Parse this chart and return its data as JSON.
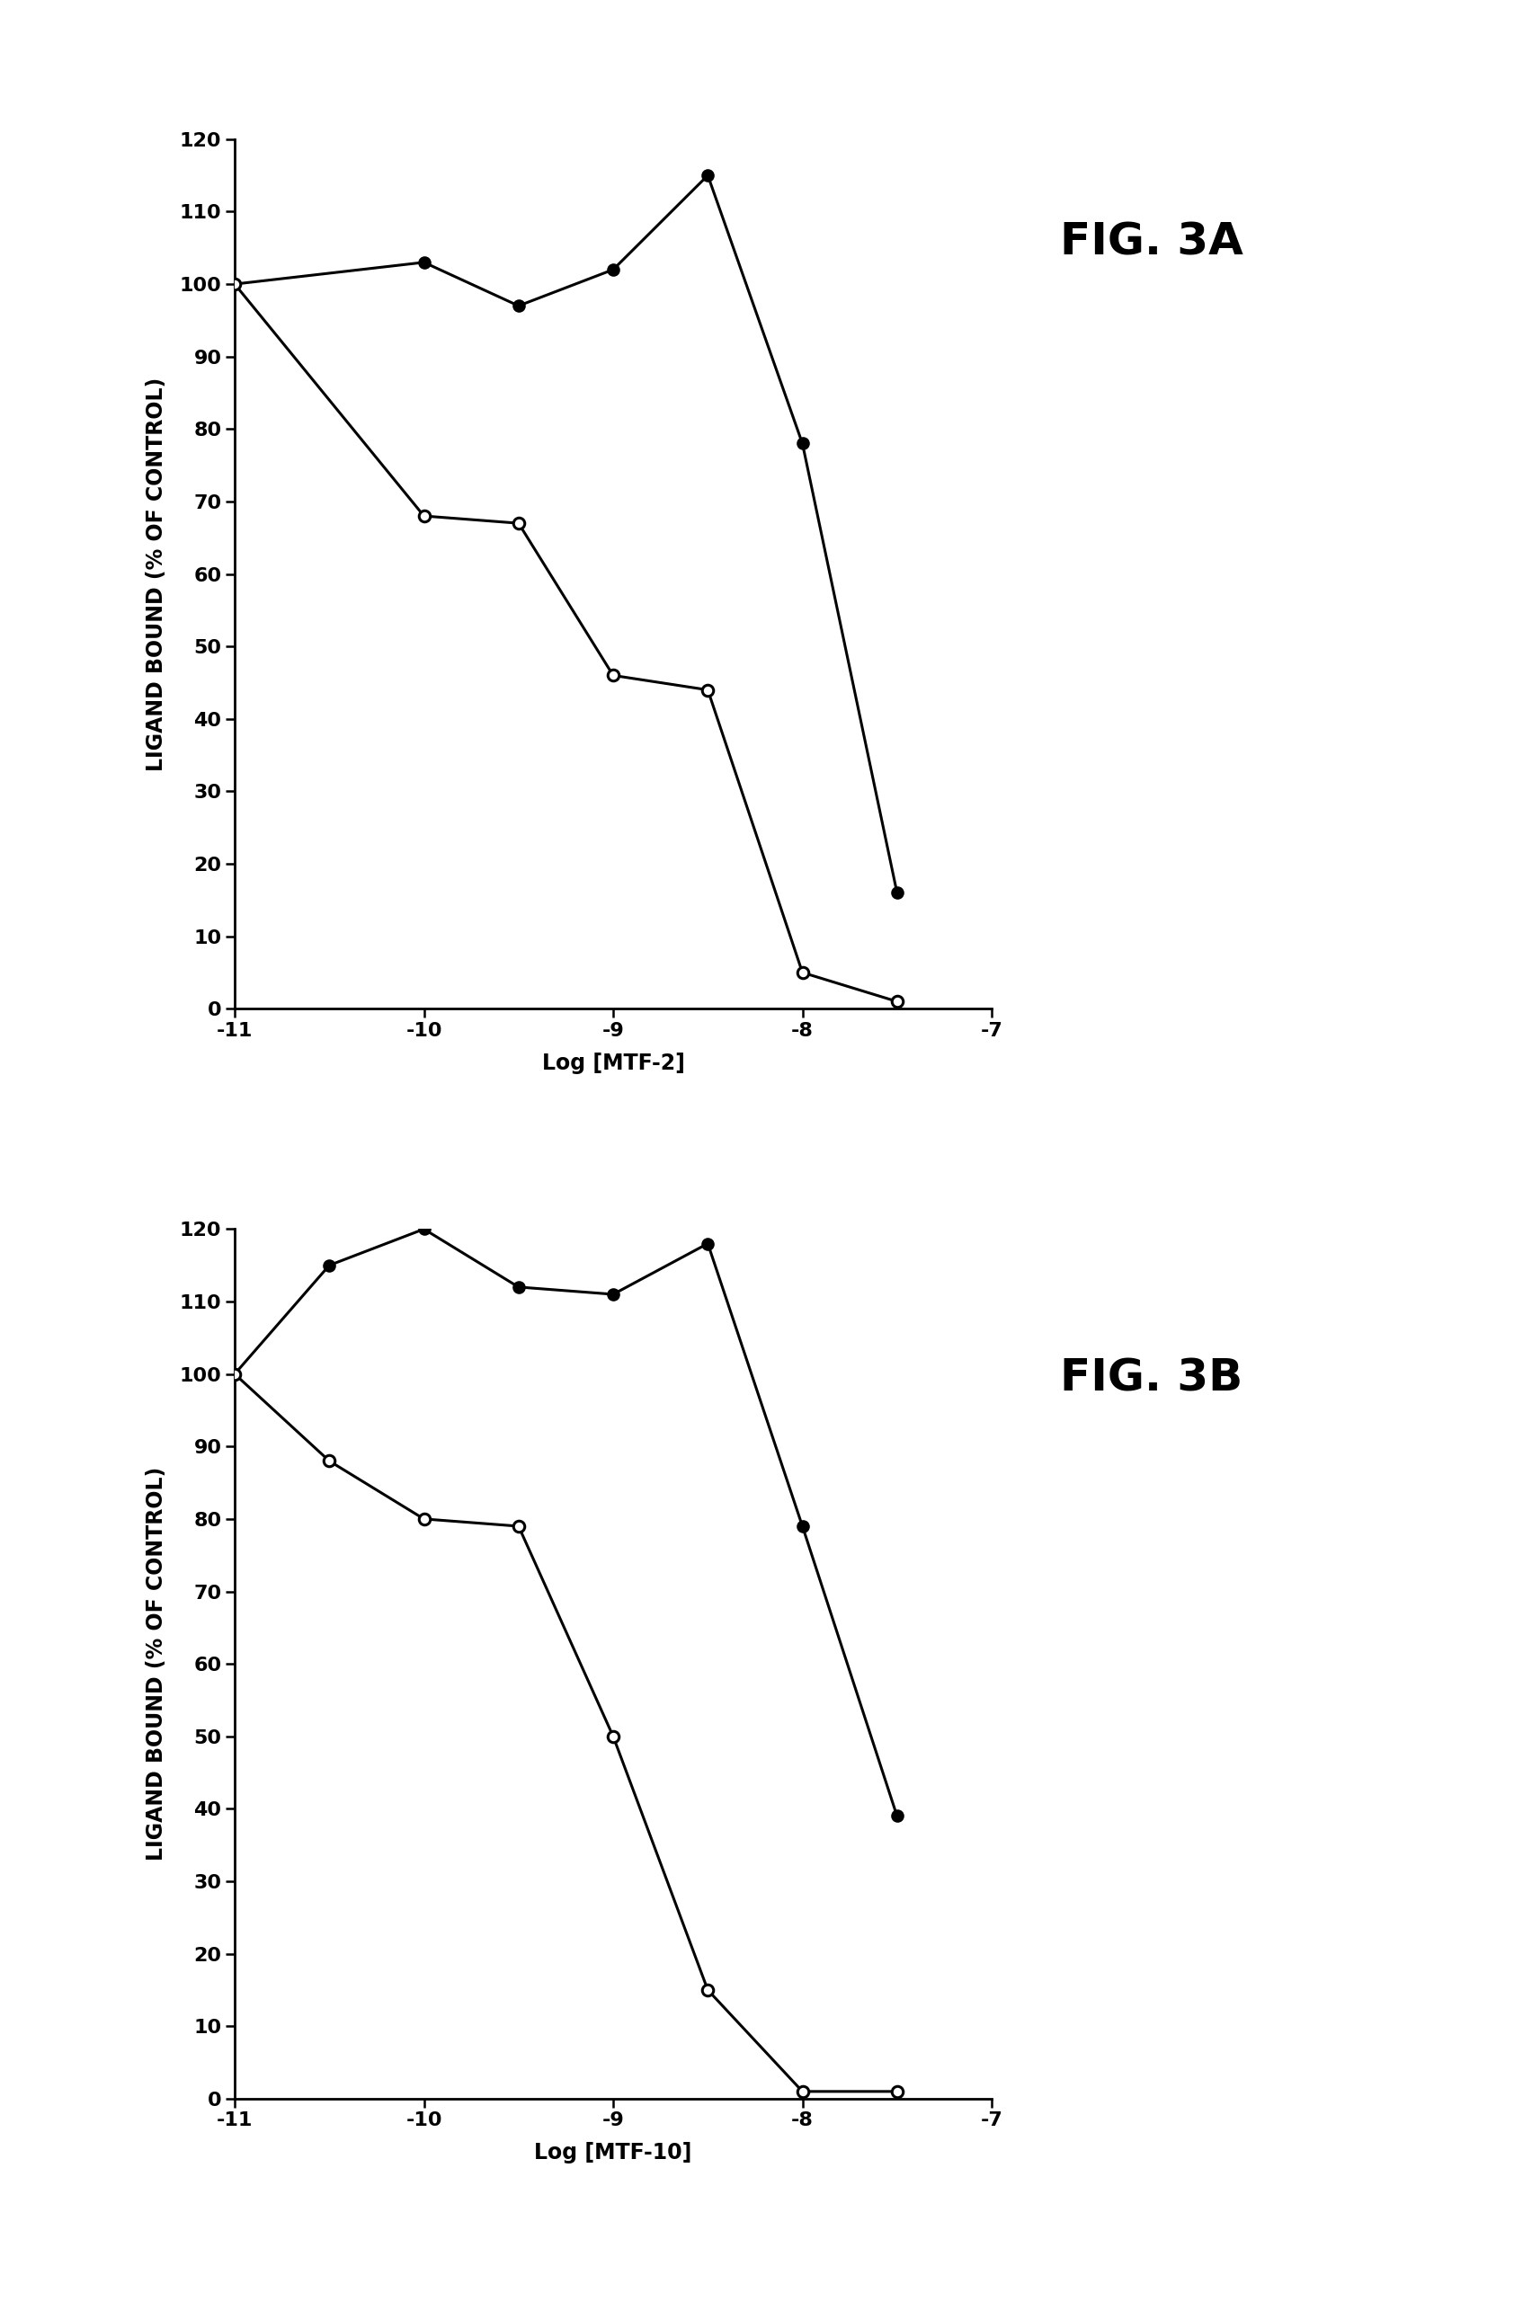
{
  "fig3a": {
    "title": "FIG. 3A",
    "xlabel": "Log [MTF-2]",
    "ylabel": "LIGAND BOUND (% OF CONTROL)",
    "xlim": [
      -11,
      -7
    ],
    "ylim": [
      0,
      120
    ],
    "yticks": [
      0,
      10,
      20,
      30,
      40,
      50,
      60,
      70,
      80,
      90,
      100,
      110,
      120
    ],
    "xticks": [
      -11,
      -10,
      -9,
      -8,
      -7
    ],
    "filled_x": [
      -11,
      -10,
      -9.5,
      -9,
      -8.5,
      -8,
      -7.5
    ],
    "filled_y": [
      100,
      103,
      97,
      102,
      115,
      78,
      16
    ],
    "open_x": [
      -11,
      -10,
      -9.5,
      -9,
      -8.5,
      -8,
      -7.5
    ],
    "open_y": [
      100,
      68,
      67,
      46,
      44,
      5,
      1
    ]
  },
  "fig3b": {
    "title": "FIG. 3B",
    "xlabel": "Log [MTF-10]",
    "ylabel": "LIGAND BOUND (% OF CONTROL)",
    "xlim": [
      -11,
      -7
    ],
    "ylim": [
      0,
      120
    ],
    "yticks": [
      0,
      10,
      20,
      30,
      40,
      50,
      60,
      70,
      80,
      90,
      100,
      110,
      120
    ],
    "xticks": [
      -11,
      -10,
      -9,
      -8,
      -7
    ],
    "filled_x": [
      -11,
      -10.5,
      -10,
      -9.5,
      -9,
      -8.5,
      -8,
      -7.5
    ],
    "filled_y": [
      100,
      115,
      120,
      112,
      111,
      118,
      79,
      39
    ],
    "open_x": [
      -11,
      -10.5,
      -10,
      -9.5,
      -9,
      -8.5,
      -8,
      -7.5
    ],
    "open_y": [
      100,
      88,
      80,
      79,
      50,
      15,
      1,
      1
    ]
  },
  "background_color": "#ffffff",
  "line_color": "#000000",
  "marker_size": 9,
  "line_width": 2.2,
  "title_fontsize": 36,
  "label_fontsize": 17,
  "tick_fontsize": 16
}
